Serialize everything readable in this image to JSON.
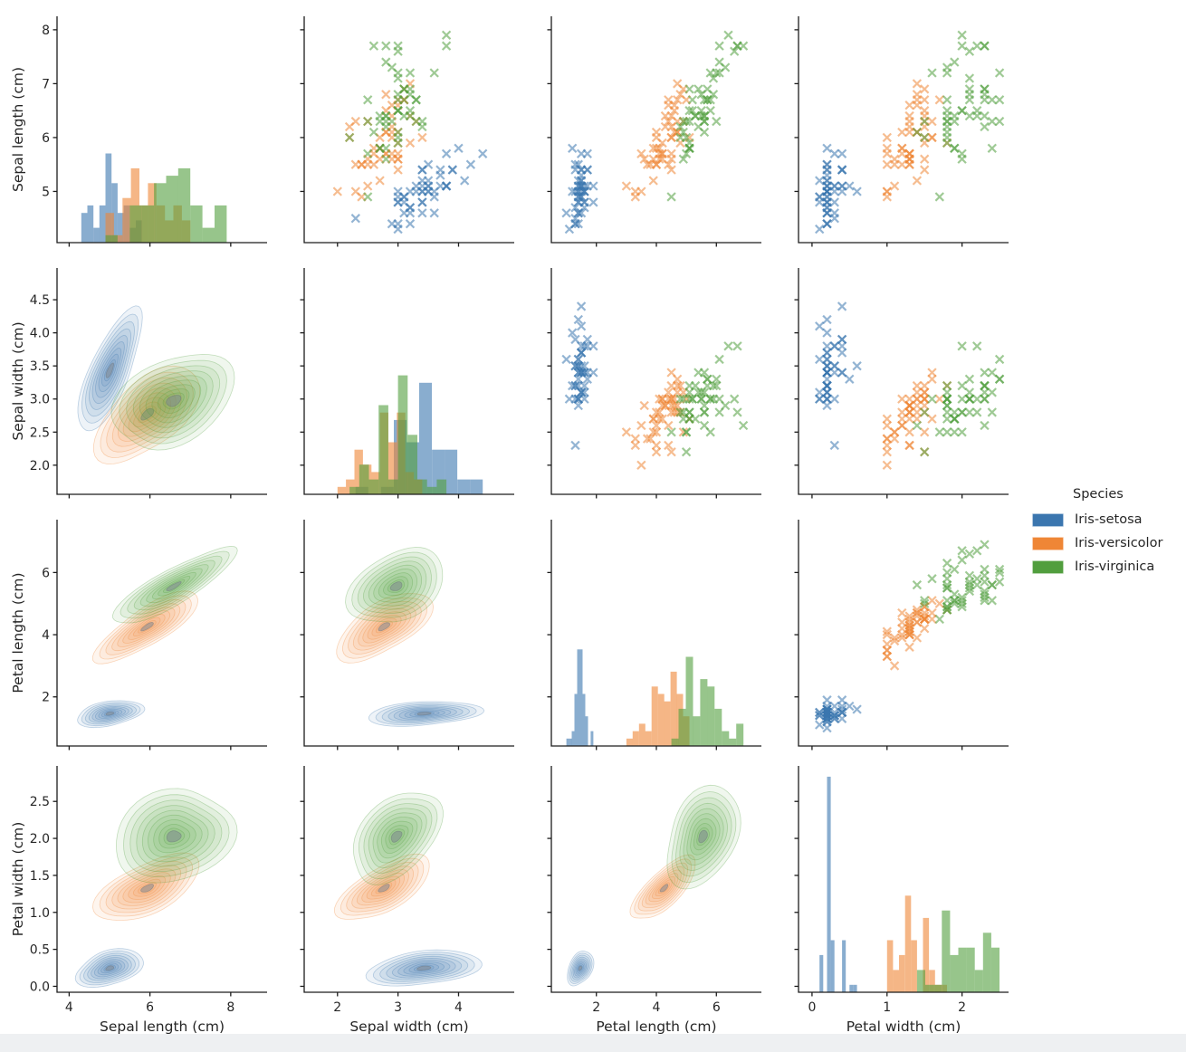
{
  "page": {
    "background": "#ffffff",
    "footer_strip_color": "#eef0f2"
  },
  "chart_data": {
    "type": "scatter",
    "subtype": "pairplot",
    "title": "",
    "legend_title": "Species",
    "legend_position": "right",
    "panels": {
      "diagonal": "histogram",
      "upper_triangle": "scatter x-markers",
      "lower_triangle": "kde filled contours"
    },
    "marker": "x",
    "hist_bins_per_species": 10,
    "grid": "4x4",
    "text_color": "#262626",
    "columns": [
      "Sepal length (cm)",
      "Sepal width (cm)",
      "Petal length (cm)",
      "Petal width (cm)"
    ],
    "variables": [
      {
        "label": "Sepal length (cm)",
        "xlim": [
          3.7,
          8.9
        ],
        "ylim": [
          4.05,
          8.25
        ],
        "xticks": [
          [
            4,
            "4"
          ],
          [
            6,
            "6"
          ],
          [
            8,
            "8"
          ]
        ],
        "yticks": [
          [
            5,
            "5"
          ],
          [
            6,
            "6"
          ],
          [
            7,
            "7"
          ],
          [
            8,
            "8"
          ]
        ]
      },
      {
        "label": "Sepal width (cm)",
        "xlim": [
          1.45,
          4.92
        ],
        "ylim": [
          1.56,
          4.98
        ],
        "xticks": [
          [
            2,
            "2"
          ],
          [
            3,
            "3"
          ],
          [
            4,
            "4"
          ]
        ],
        "yticks": [
          [
            2,
            "2.0"
          ],
          [
            2.5,
            "2.5"
          ],
          [
            3,
            "3.0"
          ],
          [
            3.5,
            "3.5"
          ],
          [
            4,
            "4.0"
          ],
          [
            4.5,
            "4.5"
          ]
        ]
      },
      {
        "label": "Petal length (cm)",
        "xlim": [
          0.5,
          7.5
        ],
        "ylim": [
          0.42,
          7.7
        ],
        "xticks": [
          [
            2,
            "2"
          ],
          [
            4,
            "4"
          ],
          [
            6,
            "6"
          ]
        ],
        "yticks": [
          [
            2,
            "2"
          ],
          [
            4,
            "4"
          ],
          [
            6,
            "6"
          ]
        ]
      },
      {
        "label": "Petal width (cm)",
        "xlim": [
          -0.18,
          2.62
        ],
        "ylim": [
          -0.08,
          2.98
        ],
        "xticks": [
          [
            0,
            "0"
          ],
          [
            1,
            "1"
          ],
          [
            2,
            "2"
          ]
        ],
        "yticks": [
          [
            0,
            "0.0"
          ],
          [
            0.5,
            "0.5"
          ],
          [
            1,
            "1.0"
          ],
          [
            1.5,
            "1.5"
          ],
          [
            2,
            "2.0"
          ],
          [
            2.5,
            "2.5"
          ]
        ]
      }
    ],
    "series": [
      {
        "name": "Iris-setosa",
        "color": "#3b76af",
        "data": [
          [
            5.1,
            3.5,
            1.4,
            0.2
          ],
          [
            4.9,
            3.0,
            1.4,
            0.2
          ],
          [
            4.7,
            3.2,
            1.3,
            0.2
          ],
          [
            4.6,
            3.1,
            1.5,
            0.2
          ],
          [
            5.0,
            3.6,
            1.4,
            0.2
          ],
          [
            5.4,
            3.9,
            1.7,
            0.4
          ],
          [
            4.6,
            3.4,
            1.4,
            0.3
          ],
          [
            5.0,
            3.4,
            1.5,
            0.2
          ],
          [
            4.4,
            2.9,
            1.4,
            0.2
          ],
          [
            4.9,
            3.1,
            1.5,
            0.1
          ],
          [
            5.4,
            3.7,
            1.5,
            0.2
          ],
          [
            4.8,
            3.4,
            1.6,
            0.2
          ],
          [
            4.8,
            3.0,
            1.4,
            0.1
          ],
          [
            4.3,
            3.0,
            1.1,
            0.1
          ],
          [
            5.8,
            4.0,
            1.2,
            0.2
          ],
          [
            5.7,
            4.4,
            1.5,
            0.4
          ],
          [
            5.4,
            3.9,
            1.3,
            0.4
          ],
          [
            5.1,
            3.5,
            1.4,
            0.3
          ],
          [
            5.7,
            3.8,
            1.7,
            0.3
          ],
          [
            5.1,
            3.8,
            1.5,
            0.3
          ],
          [
            5.4,
            3.4,
            1.7,
            0.2
          ],
          [
            5.1,
            3.7,
            1.5,
            0.4
          ],
          [
            4.6,
            3.6,
            1.0,
            0.2
          ],
          [
            5.1,
            3.3,
            1.7,
            0.5
          ],
          [
            4.8,
            3.4,
            1.9,
            0.2
          ],
          [
            5.0,
            3.0,
            1.6,
            0.2
          ],
          [
            5.0,
            3.4,
            1.6,
            0.4
          ],
          [
            5.2,
            3.5,
            1.5,
            0.2
          ],
          [
            5.2,
            3.4,
            1.4,
            0.2
          ],
          [
            4.7,
            3.2,
            1.6,
            0.2
          ],
          [
            4.8,
            3.1,
            1.6,
            0.2
          ],
          [
            5.4,
            3.4,
            1.5,
            0.4
          ],
          [
            5.2,
            4.1,
            1.5,
            0.1
          ],
          [
            5.5,
            4.2,
            1.4,
            0.2
          ],
          [
            4.9,
            3.1,
            1.5,
            0.2
          ],
          [
            5.0,
            3.2,
            1.2,
            0.2
          ],
          [
            5.5,
            3.5,
            1.3,
            0.2
          ],
          [
            4.9,
            3.6,
            1.4,
            0.1
          ],
          [
            4.4,
            3.0,
            1.3,
            0.2
          ],
          [
            5.1,
            3.4,
            1.5,
            0.2
          ],
          [
            5.0,
            3.5,
            1.3,
            0.3
          ],
          [
            4.5,
            2.3,
            1.3,
            0.3
          ],
          [
            4.4,
            3.2,
            1.3,
            0.2
          ],
          [
            5.0,
            3.5,
            1.6,
            0.6
          ],
          [
            5.1,
            3.8,
            1.9,
            0.4
          ],
          [
            4.8,
            3.0,
            1.4,
            0.3
          ],
          [
            5.1,
            3.8,
            1.6,
            0.2
          ],
          [
            4.6,
            3.2,
            1.4,
            0.2
          ],
          [
            5.3,
            3.7,
            1.5,
            0.2
          ],
          [
            5.0,
            3.3,
            1.4,
            0.2
          ]
        ]
      },
      {
        "name": "Iris-versicolor",
        "color": "#ef8636",
        "data": [
          [
            7.0,
            3.2,
            4.7,
            1.4
          ],
          [
            6.4,
            3.2,
            4.5,
            1.5
          ],
          [
            6.9,
            3.1,
            4.9,
            1.5
          ],
          [
            5.5,
            2.3,
            4.0,
            1.3
          ],
          [
            6.5,
            2.8,
            4.6,
            1.5
          ],
          [
            5.7,
            2.8,
            4.5,
            1.3
          ],
          [
            6.3,
            3.3,
            4.7,
            1.6
          ],
          [
            4.9,
            2.4,
            3.3,
            1.0
          ],
          [
            6.6,
            2.9,
            4.6,
            1.3
          ],
          [
            5.2,
            2.7,
            3.9,
            1.4
          ],
          [
            5.0,
            2.0,
            3.5,
            1.0
          ],
          [
            5.9,
            3.0,
            4.2,
            1.5
          ],
          [
            6.0,
            2.2,
            4.0,
            1.0
          ],
          [
            6.1,
            2.9,
            4.7,
            1.4
          ],
          [
            5.6,
            2.9,
            3.6,
            1.3
          ],
          [
            6.7,
            3.1,
            4.4,
            1.4
          ],
          [
            5.6,
            3.0,
            4.5,
            1.5
          ],
          [
            5.8,
            2.7,
            4.1,
            1.0
          ],
          [
            6.2,
            2.2,
            4.5,
            1.5
          ],
          [
            5.6,
            2.5,
            3.9,
            1.1
          ],
          [
            5.9,
            3.2,
            4.8,
            1.8
          ],
          [
            6.1,
            2.8,
            4.0,
            1.3
          ],
          [
            6.3,
            2.5,
            4.9,
            1.5
          ],
          [
            6.1,
            2.8,
            4.7,
            1.2
          ],
          [
            6.4,
            2.9,
            4.3,
            1.3
          ],
          [
            6.6,
            3.0,
            4.4,
            1.4
          ],
          [
            6.8,
            2.8,
            4.8,
            1.4
          ],
          [
            6.7,
            3.0,
            5.0,
            1.7
          ],
          [
            6.0,
            2.9,
            4.5,
            1.5
          ],
          [
            5.7,
            2.6,
            3.5,
            1.0
          ],
          [
            5.5,
            2.4,
            3.8,
            1.1
          ],
          [
            5.5,
            2.4,
            3.7,
            1.0
          ],
          [
            5.8,
            2.7,
            3.9,
            1.2
          ],
          [
            6.0,
            2.7,
            5.1,
            1.6
          ],
          [
            5.4,
            3.0,
            4.5,
            1.5
          ],
          [
            6.0,
            3.4,
            4.5,
            1.6
          ],
          [
            6.7,
            3.1,
            4.7,
            1.5
          ],
          [
            6.3,
            2.3,
            4.4,
            1.3
          ],
          [
            5.6,
            3.0,
            4.1,
            1.3
          ],
          [
            5.5,
            2.5,
            4.0,
            1.3
          ],
          [
            5.5,
            2.6,
            4.4,
            1.2
          ],
          [
            6.1,
            3.0,
            4.6,
            1.4
          ],
          [
            5.8,
            2.6,
            4.0,
            1.2
          ],
          [
            5.0,
            2.3,
            3.3,
            1.0
          ],
          [
            5.6,
            2.7,
            4.2,
            1.3
          ],
          [
            5.7,
            3.0,
            4.2,
            1.2
          ],
          [
            5.7,
            2.9,
            4.2,
            1.3
          ],
          [
            6.2,
            2.9,
            4.3,
            1.3
          ],
          [
            5.1,
            2.5,
            3.0,
            1.1
          ],
          [
            5.7,
            2.8,
            4.1,
            1.3
          ]
        ]
      },
      {
        "name": "Iris-virginica",
        "color": "#519e3e",
        "data": [
          [
            6.3,
            3.3,
            6.0,
            2.5
          ],
          [
            5.8,
            2.7,
            5.1,
            1.9
          ],
          [
            7.1,
            3.0,
            5.9,
            2.1
          ],
          [
            6.3,
            2.9,
            5.6,
            1.8
          ],
          [
            6.5,
            3.0,
            5.8,
            2.2
          ],
          [
            7.6,
            3.0,
            6.6,
            2.1
          ],
          [
            4.9,
            2.5,
            4.5,
            1.7
          ],
          [
            7.3,
            2.9,
            6.3,
            1.8
          ],
          [
            6.7,
            2.5,
            5.8,
            1.8
          ],
          [
            7.2,
            3.6,
            6.1,
            2.5
          ],
          [
            6.5,
            3.2,
            5.1,
            2.0
          ],
          [
            6.4,
            2.7,
            5.3,
            1.9
          ],
          [
            6.8,
            3.0,
            5.5,
            2.1
          ],
          [
            5.7,
            2.5,
            5.0,
            2.0
          ],
          [
            5.8,
            2.8,
            5.1,
            2.4
          ],
          [
            6.4,
            3.2,
            5.3,
            2.3
          ],
          [
            6.5,
            3.0,
            5.5,
            1.8
          ],
          [
            7.7,
            3.8,
            6.7,
            2.2
          ],
          [
            7.7,
            2.6,
            6.9,
            2.3
          ],
          [
            6.0,
            2.2,
            5.0,
            1.5
          ],
          [
            6.9,
            3.2,
            5.7,
            2.3
          ],
          [
            5.6,
            2.8,
            4.9,
            2.0
          ],
          [
            7.7,
            2.8,
            6.7,
            2.0
          ],
          [
            6.3,
            2.7,
            4.9,
            1.8
          ],
          [
            6.7,
            3.3,
            5.7,
            2.1
          ],
          [
            7.2,
            3.2,
            6.0,
            1.8
          ],
          [
            6.2,
            2.8,
            4.8,
            1.8
          ],
          [
            6.1,
            3.0,
            4.9,
            1.8
          ],
          [
            6.4,
            2.8,
            5.6,
            2.1
          ],
          [
            7.2,
            3.0,
            5.8,
            1.6
          ],
          [
            7.4,
            2.8,
            6.1,
            1.9
          ],
          [
            7.9,
            3.8,
            6.4,
            2.0
          ],
          [
            6.4,
            2.8,
            5.6,
            2.2
          ],
          [
            6.3,
            2.8,
            5.1,
            1.5
          ],
          [
            6.1,
            2.6,
            5.6,
            1.4
          ],
          [
            7.7,
            3.0,
            6.1,
            2.3
          ],
          [
            6.3,
            3.4,
            5.6,
            2.4
          ],
          [
            6.4,
            3.1,
            5.5,
            1.8
          ],
          [
            6.0,
            3.0,
            4.8,
            1.8
          ],
          [
            6.9,
            3.1,
            5.4,
            2.1
          ],
          [
            6.7,
            3.1,
            5.6,
            2.4
          ],
          [
            6.9,
            3.1,
            5.1,
            2.3
          ],
          [
            5.8,
            2.7,
            5.1,
            1.9
          ],
          [
            6.8,
            3.2,
            5.9,
            2.3
          ],
          [
            6.7,
            3.3,
            5.7,
            2.5
          ],
          [
            6.7,
            3.0,
            5.2,
            2.3
          ],
          [
            6.3,
            2.5,
            5.0,
            1.9
          ],
          [
            6.5,
            3.0,
            5.2,
            2.0
          ],
          [
            6.2,
            3.4,
            5.4,
            2.3
          ],
          [
            5.9,
            3.0,
            5.1,
            1.8
          ]
        ]
      }
    ]
  }
}
